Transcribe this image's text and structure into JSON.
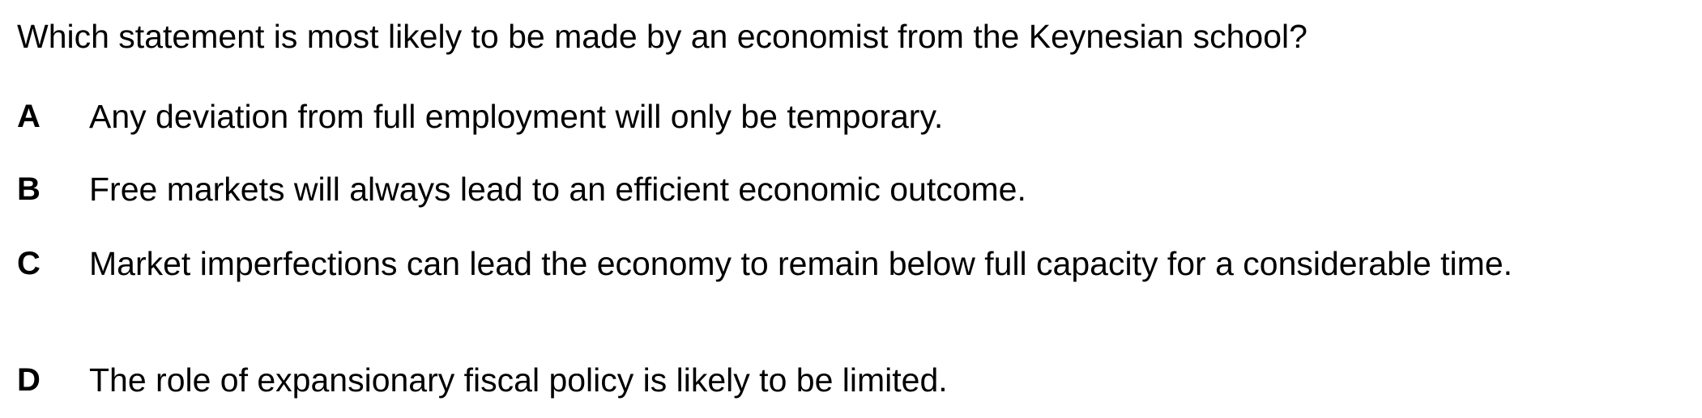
{
  "question": "Which statement is most likely to be made by an economist from the Keynesian school?",
  "options": [
    {
      "letter": "A",
      "text": "Any deviation from full employment will only be temporary."
    },
    {
      "letter": "B",
      "text": "Free markets will always lead to an efficient economic outcome."
    },
    {
      "letter": "C",
      "text": "Market imperfections can lead the economy to remain below full capacity for a considerable time."
    },
    {
      "letter": "D",
      "text": "The role of expansionary fiscal policy is likely to be limited."
    }
  ]
}
